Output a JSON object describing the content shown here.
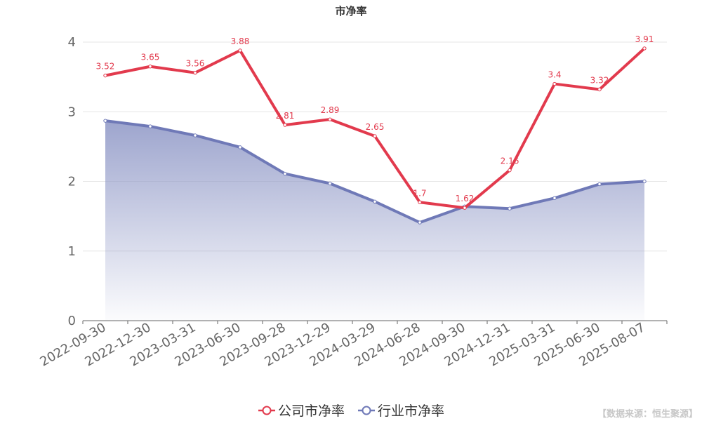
{
  "chart_data": {
    "type": "line",
    "title": "市净率",
    "categories": [
      "2022-09-30",
      "2022-12-30",
      "2023-03-31",
      "2023-06-30",
      "2023-09-28",
      "2023-12-29",
      "2024-03-29",
      "2024-06-28",
      "2024-09-30",
      "2024-12-31",
      "2025-03-31",
      "2025-06-30",
      "2025-08-07"
    ],
    "ylim": [
      0,
      4
    ],
    "yticks": [
      "0",
      "1",
      "2",
      "3",
      "4"
    ],
    "grid": true,
    "legend_position": "bottom",
    "series": [
      {
        "name": "公司市净率",
        "color": "#e23a4d",
        "values": [
          3.52,
          3.65,
          3.56,
          3.88,
          2.81,
          2.89,
          2.65,
          1.7,
          1.62,
          2.16,
          3.4,
          3.32,
          3.91
        ],
        "labels": [
          "3.52",
          "3.65",
          "3.56",
          "3.88",
          "2.81",
          "2.89",
          "2.65",
          "1.7",
          "1.62",
          "2.16",
          "3.4",
          "3.32",
          "3.91"
        ]
      },
      {
        "name": "行业市净率",
        "color": "#6f79b7",
        "area": true,
        "values": [
          2.87,
          2.79,
          2.66,
          2.49,
          2.11,
          1.97,
          1.71,
          1.41,
          1.64,
          1.61,
          1.76,
          1.96,
          2.0
        ]
      }
    ],
    "source": "【数据来源：恒生聚源】"
  }
}
